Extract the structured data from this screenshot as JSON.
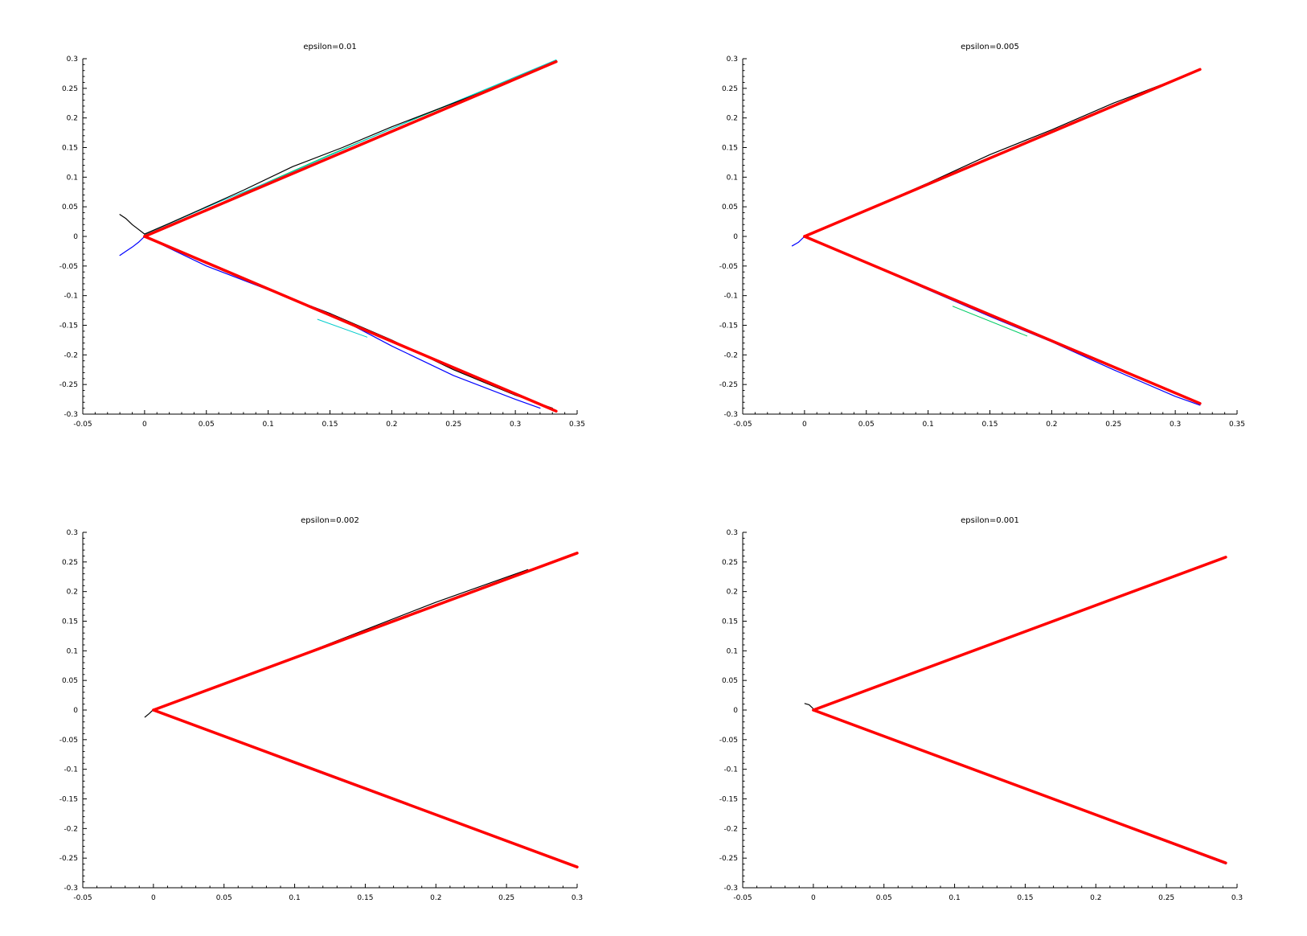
{
  "chart_data": [
    {
      "type": "line",
      "title": "epsilon=0.01",
      "xlim": [
        -0.05,
        0.35
      ],
      "ylim": [
        -0.3,
        0.3
      ],
      "xticks": [
        "-0.05",
        "0",
        "0.05",
        "0.1",
        "0.15",
        "0.2",
        "0.25",
        "0.3",
        "0.35"
      ],
      "yticks": [
        "0.3",
        "0.25",
        "0.2",
        "0.15",
        "0.1",
        "0.05",
        "0",
        "-0.05",
        "-0.1",
        "-0.15",
        "-0.2",
        "-0.25",
        "-0.3"
      ],
      "series": [
        {
          "color": "#ff0000",
          "width": 3.5,
          "x": [
            0,
            0.333
          ],
          "y": [
            0,
            0.295
          ]
        },
        {
          "color": "#ff0000",
          "width": 3.5,
          "x": [
            0,
            0.333
          ],
          "y": [
            0,
            -0.295
          ]
        },
        {
          "color": "#000000",
          "width": 1.2,
          "x": [
            -0.02,
            -0.015,
            -0.01,
            -0.005,
            0,
            0.02,
            0.05,
            0.08,
            0.12,
            0.16,
            0.2,
            0.25,
            0.3,
            0.33
          ],
          "y": [
            0.037,
            0.03,
            0.02,
            0.012,
            0.004,
            0.022,
            0.05,
            0.078,
            0.118,
            0.15,
            0.185,
            0.225,
            0.265,
            0.293
          ]
        },
        {
          "color": "#00cc66",
          "width": 1,
          "x": [
            0,
            0.05,
            0.1,
            0.15,
            0.2,
            0.25,
            0.3,
            0.333
          ],
          "y": [
            0.002,
            0.045,
            0.092,
            0.138,
            0.182,
            0.225,
            0.268,
            0.298
          ]
        },
        {
          "color": "#00cccc",
          "width": 1,
          "x": [
            0,
            0.06,
            0.11,
            0.17,
            0.22,
            0.28,
            0.333
          ],
          "y": [
            0.003,
            0.058,
            0.1,
            0.155,
            0.2,
            0.252,
            0.298
          ]
        },
        {
          "color": "#0000ff",
          "width": 1.2,
          "x": [
            -0.02,
            -0.015,
            -0.01,
            -0.005,
            0,
            0.05,
            0.1,
            0.15,
            0.2,
            0.25,
            0.3,
            0.32
          ],
          "y": [
            -0.032,
            -0.025,
            -0.018,
            -0.01,
            0,
            -0.05,
            -0.09,
            -0.13,
            -0.185,
            -0.235,
            -0.275,
            -0.29
          ]
        },
        {
          "color": "#000000",
          "width": 1.2,
          "x": [
            0,
            0.05,
            0.1,
            0.15,
            0.2,
            0.25,
            0.3,
            0.33
          ],
          "y": [
            0,
            -0.045,
            -0.09,
            -0.13,
            -0.175,
            -0.225,
            -0.268,
            -0.29
          ]
        },
        {
          "color": "#00cccc",
          "width": 1,
          "x": [
            0.14,
            0.18
          ],
          "y": [
            -0.14,
            -0.17
          ]
        }
      ]
    },
    {
      "type": "line",
      "title": "epsilon=0.005",
      "xlim": [
        -0.05,
        0.35
      ],
      "ylim": [
        -0.3,
        0.3
      ],
      "xticks": [
        "-0.05",
        "0",
        "0.05",
        "0.1",
        "0.15",
        "0.2",
        "0.25",
        "0.3",
        "0.35"
      ],
      "yticks": [
        "0.3",
        "0.25",
        "0.2",
        "0.15",
        "0.1",
        "0.05",
        "0",
        "-0.05",
        "-0.1",
        "-0.15",
        "-0.2",
        "-0.25",
        "-0.3"
      ],
      "series": [
        {
          "color": "#ff0000",
          "width": 3.5,
          "x": [
            0,
            0.32
          ],
          "y": [
            0,
            0.282
          ]
        },
        {
          "color": "#ff0000",
          "width": 3.5,
          "x": [
            0,
            0.32
          ],
          "y": [
            0,
            -0.282
          ]
        },
        {
          "color": "#000000",
          "width": 1.2,
          "x": [
            0,
            0.05,
            0.1,
            0.15,
            0.2,
            0.25,
            0.3,
            0.32
          ],
          "y": [
            0,
            0.045,
            0.09,
            0.138,
            0.18,
            0.225,
            0.265,
            0.281
          ]
        },
        {
          "color": "#0000ff",
          "width": 1.2,
          "x": [
            -0.01,
            -0.005,
            0,
            0.05,
            0.1,
            0.15,
            0.2,
            0.25,
            0.3,
            0.32
          ],
          "y": [
            -0.016,
            -0.01,
            0,
            -0.045,
            -0.09,
            -0.135,
            -0.178,
            -0.225,
            -0.27,
            -0.285
          ]
        },
        {
          "color": "#00cc66",
          "width": 1,
          "x": [
            0.12,
            0.18
          ],
          "y": [
            -0.118,
            -0.168
          ]
        }
      ]
    },
    {
      "type": "line",
      "title": "epsilon=0.002",
      "xlim": [
        -0.05,
        0.3
      ],
      "ylim": [
        -0.3,
        0.3
      ],
      "xticks": [
        "-0.05",
        "0",
        "0.05",
        "0.1",
        "0.15",
        "0.2",
        "0.25",
        "0.3"
      ],
      "yticks": [
        "0.3",
        "0.25",
        "0.2",
        "0.15",
        "0.1",
        "0.05",
        "0",
        "-0.05",
        "-0.1",
        "-0.15",
        "-0.2",
        "-0.25",
        "-0.3"
      ],
      "series": [
        {
          "color": "#ff0000",
          "width": 3.5,
          "x": [
            0,
            0.3
          ],
          "y": [
            0,
            0.265
          ]
        },
        {
          "color": "#ff0000",
          "width": 3.5,
          "x": [
            0,
            0.3
          ],
          "y": [
            0,
            -0.265
          ]
        },
        {
          "color": "#000000",
          "width": 1.2,
          "x": [
            -0.006,
            -0.003,
            0,
            0.1,
            0.2,
            0.265
          ],
          "y": [
            -0.012,
            -0.006,
            0.001,
            0.089,
            0.182,
            0.237
          ]
        },
        {
          "color": "#0000ff",
          "width": 1.2,
          "x": [
            0,
            0.1,
            0.2,
            0.3
          ],
          "y": [
            0,
            -0.09,
            -0.178,
            -0.266
          ]
        }
      ]
    },
    {
      "type": "line",
      "title": "epsilon=0.001",
      "xlim": [
        -0.05,
        0.3
      ],
      "ylim": [
        -0.3,
        0.3
      ],
      "xticks": [
        "-0.05",
        "0",
        "0.05",
        "0.1",
        "0.15",
        "0.2",
        "0.25",
        "0.3"
      ],
      "yticks": [
        "0.3",
        "0.25",
        "0.2",
        "0.15",
        "0.1",
        "0.05",
        "0",
        "-0.05",
        "-0.1",
        "-0.15",
        "-0.2",
        "-0.25",
        "-0.3"
      ],
      "series": [
        {
          "color": "#ff0000",
          "width": 3.5,
          "x": [
            0,
            0.292
          ],
          "y": [
            0,
            0.258
          ]
        },
        {
          "color": "#ff0000",
          "width": 3.5,
          "x": [
            0,
            0.292
          ],
          "y": [
            0,
            -0.258
          ]
        },
        {
          "color": "#000000",
          "width": 1.2,
          "x": [
            -0.006,
            -0.003,
            0,
            0.002
          ],
          "y": [
            0.011,
            0.009,
            0.002,
            0
          ]
        },
        {
          "color": "#0000ff",
          "width": 1.2,
          "x": [
            0,
            0.1,
            0.2,
            0.292
          ],
          "y": [
            0,
            -0.089,
            -0.178,
            -0.26
          ]
        }
      ]
    }
  ]
}
